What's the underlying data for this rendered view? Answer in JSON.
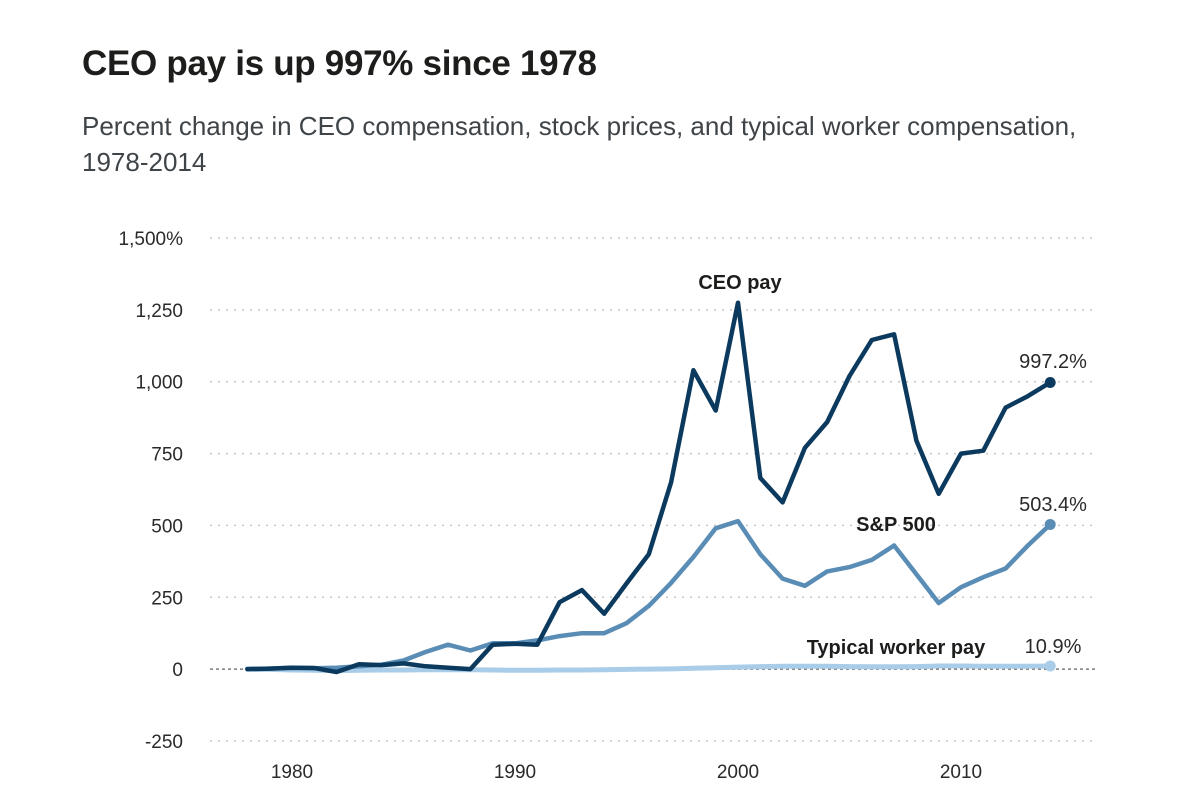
{
  "chart_data": {
    "type": "line",
    "title": "CEO pay is up 997% since 1978",
    "subtitle": "Percent change in CEO compensation, stock prices, and typical worker compensation, 1978-2014",
    "xlabel": "",
    "ylabel": "",
    "xlim": [
      1978,
      2014
    ],
    "ylim": [
      -250,
      1500
    ],
    "y_ticks": [
      {
        "value": 1500,
        "label": "1,500%"
      },
      {
        "value": 1250,
        "label": "1,250"
      },
      {
        "value": 1000,
        "label": "1,000"
      },
      {
        "value": 750,
        "label": "750"
      },
      {
        "value": 500,
        "label": "500"
      },
      {
        "value": 250,
        "label": "250"
      },
      {
        "value": 0,
        "label": "0"
      },
      {
        "value": -250,
        "label": "-250"
      }
    ],
    "x_ticks": [
      {
        "value": 1980,
        "label": "1980"
      },
      {
        "value": 1990,
        "label": "1990"
      },
      {
        "value": 2000,
        "label": "2000"
      },
      {
        "value": 2010,
        "label": "2010"
      }
    ],
    "grid": "horizontal dotted",
    "x": [
      1978,
      1979,
      1980,
      1981,
      1982,
      1983,
      1984,
      1985,
      1986,
      1987,
      1988,
      1989,
      1990,
      1991,
      1992,
      1993,
      1994,
      1995,
      1996,
      1997,
      1998,
      1999,
      2000,
      2001,
      2002,
      2003,
      2004,
      2005,
      2006,
      2007,
      2008,
      2009,
      2010,
      2011,
      2012,
      2013,
      2014
    ],
    "series": [
      {
        "name": "CEO pay",
        "color": "#0b3a5e",
        "values": [
          0,
          2,
          5,
          4,
          -10,
          17,
          14,
          20,
          10,
          5,
          0,
          85,
          88,
          85,
          233,
          275,
          193,
          298,
          400,
          650,
          1040,
          900,
          1275,
          665,
          580,
          770,
          860,
          1020,
          1145,
          1165,
          795,
          610,
          750,
          760,
          910,
          950,
          997.2
        ],
        "end_label": "997.2%"
      },
      {
        "name": "S&P 500",
        "color": "#5a8db6",
        "values": [
          0,
          2,
          5,
          3,
          5,
          10,
          15,
          30,
          60,
          85,
          65,
          90,
          90,
          100,
          115,
          125,
          125,
          160,
          220,
          300,
          390,
          490,
          515,
          400,
          315,
          290,
          340,
          355,
          380,
          430,
          330,
          230,
          285,
          320,
          350,
          430,
          503.4
        ],
        "end_label": "503.4%"
      },
      {
        "name": "Typical worker pay",
        "color": "#a9cce8",
        "values": [
          0,
          -1,
          -3,
          -4,
          -5,
          -4,
          -3,
          -3,
          -2,
          -2,
          -2,
          -3,
          -4,
          -4,
          -3,
          -3,
          -2,
          -1,
          0,
          1,
          3,
          5,
          7,
          9,
          10,
          10,
          10,
          9,
          8,
          8,
          9,
          11,
          11,
          10,
          10,
          10,
          10.9
        ],
        "end_label": "10.9%"
      }
    ]
  }
}
